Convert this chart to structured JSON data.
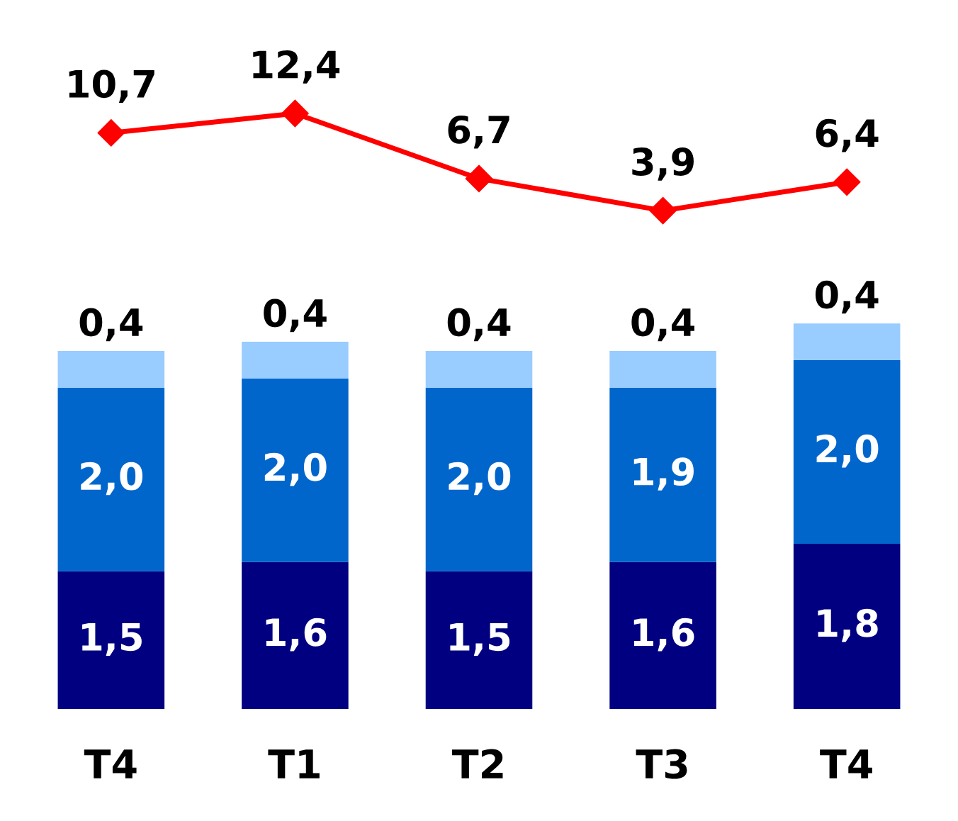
{
  "chart_data": [
    {
      "type": "line",
      "categories": [
        null,
        null,
        null,
        null,
        null
      ],
      "series": [
        {
          "color": "#ff0000",
          "marker": "diamond",
          "values": [
            10.7,
            12.4,
            6.7,
            3.9,
            6.4
          ],
          "value_labels": [
            "10,7",
            "12,4",
            "6,7",
            "3,9",
            "6,4"
          ]
        }
      ],
      "tick_labels": false,
      "legend": false
    },
    {
      "type": "bar",
      "stacked": true,
      "categories": [
        "T4",
        "T1",
        "T2",
        "T3",
        "T4"
      ],
      "series": [
        {
          "color": "#000080",
          "values": [
            1.5,
            1.6,
            1.5,
            1.6,
            1.8
          ],
          "value_labels": [
            "1,5",
            "1,6",
            "1,5",
            "1,6",
            "1,8"
          ]
        },
        {
          "color": "#0066cc",
          "values": [
            2.0,
            2.0,
            2.0,
            1.9,
            2.0
          ],
          "value_labels": [
            "2,0",
            "2,0",
            "2,0",
            "1,9",
            "2,0"
          ]
        },
        {
          "color": "#99ccff",
          "values": [
            0.4,
            0.4,
            0.4,
            0.4,
            0.4
          ],
          "value_labels": [
            "0,4",
            "0,4",
            "0,4",
            "0,4",
            "0,4"
          ]
        }
      ],
      "tick_labels": "x",
      "legend": false
    }
  ]
}
